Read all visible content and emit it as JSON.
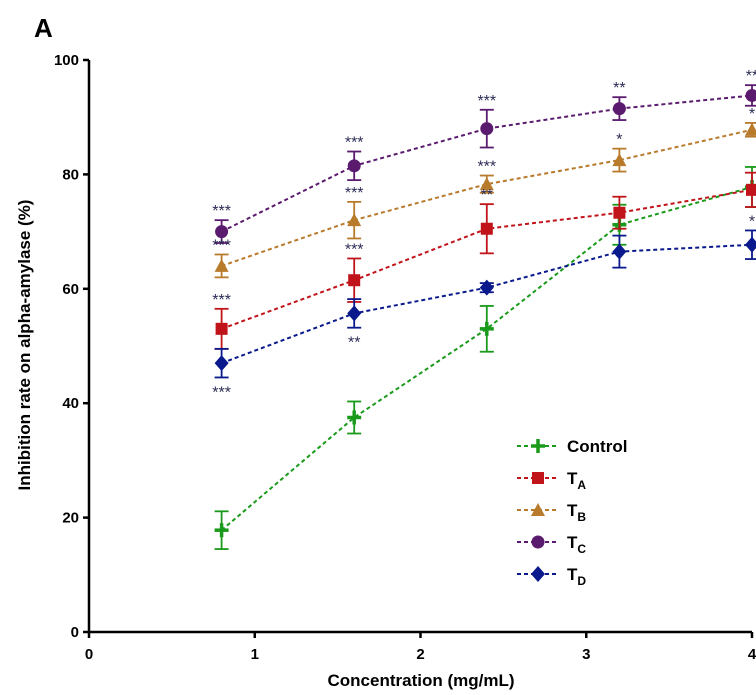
{
  "panel_label": "A",
  "chart_data": {
    "type": "line",
    "xlabel": "Concentration (mg/mL)",
    "ylabel": "Inhibition rate on alpha-amylase (%)",
    "xlim": [
      0,
      4
    ],
    "ylim": [
      0,
      100
    ],
    "x_ticks": [
      "0",
      "1",
      "2",
      "3",
      "4"
    ],
    "y_ticks": [
      "0",
      "20",
      "40",
      "60",
      "80",
      "100"
    ],
    "x": [
      0.8,
      1.6,
      2.4,
      3.2,
      4.0
    ],
    "legend_position": "center-right",
    "series": [
      {
        "name": "Control",
        "sub": "",
        "color": "#1a9a1a",
        "marker": "plus",
        "values": [
          17.8,
          37.5,
          53.0,
          71.2,
          77.8
        ],
        "errors": [
          3.3,
          2.8,
          4.0,
          3.5,
          3.5
        ],
        "sig": [
          "",
          "",
          "",
          "",
          ""
        ]
      },
      {
        "name": "T",
        "sub": "A",
        "color": "#c0141a",
        "marker": "square",
        "values": [
          53.0,
          61.5,
          70.5,
          73.3,
          77.3
        ],
        "errors": [
          3.5,
          3.8,
          4.3,
          2.8,
          3.0
        ],
        "sig": [
          "***",
          "***",
          "**",
          "",
          ""
        ]
      },
      {
        "name": "T",
        "sub": "B",
        "color": "#b87a2b",
        "marker": "triangle",
        "values": [
          64.0,
          72.0,
          78.3,
          82.5,
          87.8
        ],
        "errors": [
          2.0,
          3.2,
          1.5,
          2.0,
          1.2
        ],
        "sig": [
          "***",
          "***",
          "***",
          "*",
          "*"
        ]
      },
      {
        "name": "T",
        "sub": "C",
        "color": "#5a1a6e",
        "marker": "circle",
        "values": [
          70.0,
          81.5,
          88.0,
          91.5,
          93.8
        ],
        "errors": [
          2.0,
          2.5,
          3.3,
          2.0,
          1.8
        ],
        "sig": [
          "***",
          "***",
          "***",
          "**",
          "**"
        ]
      },
      {
        "name": "T",
        "sub": "D",
        "color": "#0a1a8c",
        "marker": "diamond",
        "values": [
          47.0,
          55.7,
          60.2,
          66.5,
          67.7
        ],
        "errors": [
          2.5,
          2.5,
          0.8,
          2.8,
          2.5
        ],
        "sig": [
          "***",
          "**",
          "",
          "",
          "*"
        ]
      }
    ]
  }
}
